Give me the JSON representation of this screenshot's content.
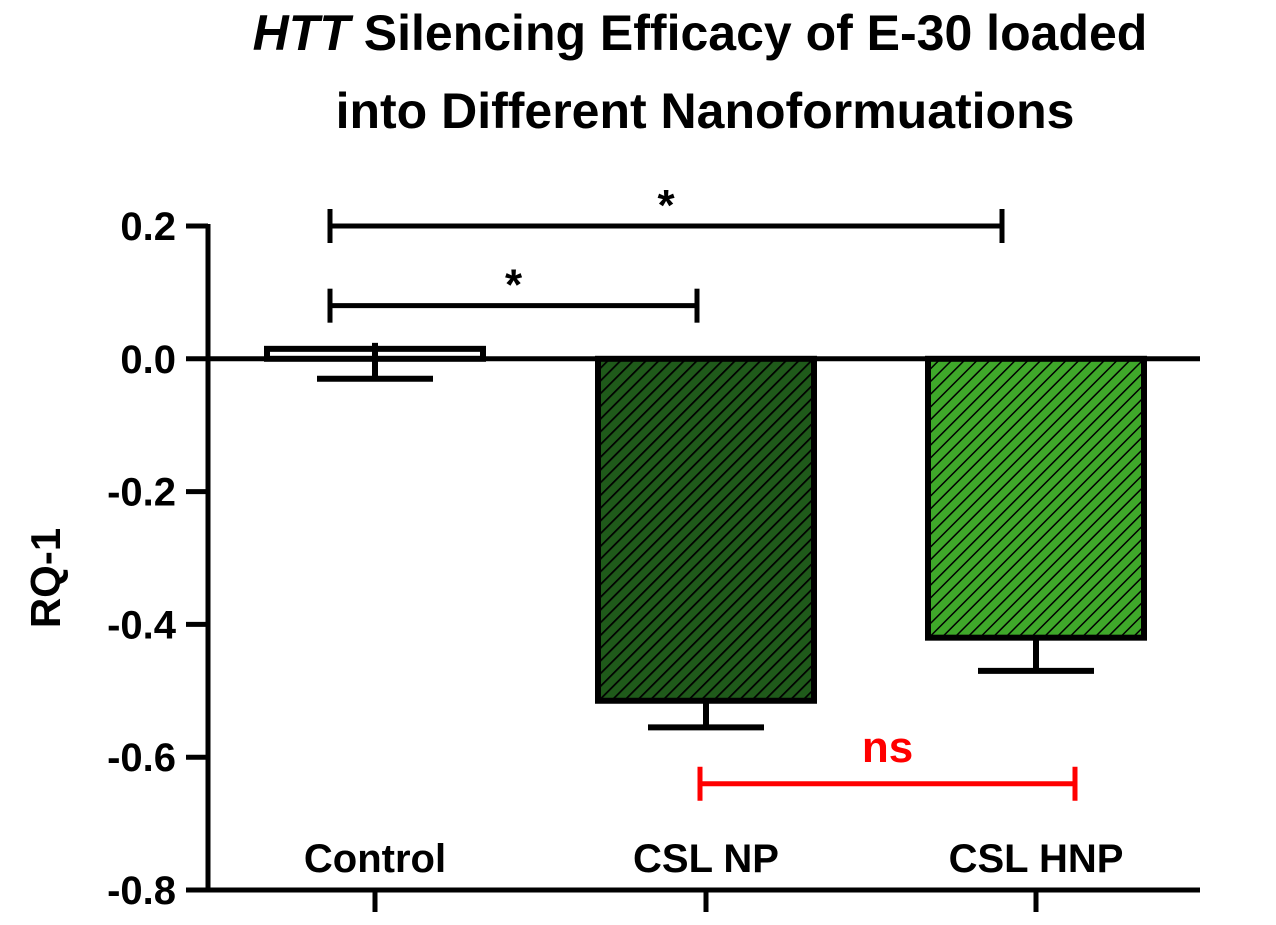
{
  "chart_data": {
    "type": "bar",
    "title_italic": "HTT",
    "title_rest": "Silencing Efficacy of E-30 loaded",
    "title_line2": "into Different Nanoformuations",
    "xlabel": "",
    "ylabel": "RQ-1",
    "ylim": [
      -0.8,
      0.2
    ],
    "yticks": [
      "0.2",
      "0.0",
      "-0.2",
      "-0.4",
      "-0.6",
      "-0.8"
    ],
    "ytick_values": [
      0.2,
      0.0,
      -0.2,
      -0.4,
      -0.6,
      -0.8
    ],
    "categories": [
      "Control",
      "CSL NP",
      "CSL HNP"
    ],
    "values": [
      0.015,
      -0.515,
      -0.42
    ],
    "errors": [
      0.03,
      0.04,
      0.05
    ],
    "bar_colors": [
      "#ffffff",
      "#1f5a1a",
      "#3fa82a"
    ],
    "hatch_colors": [
      "#ffffff",
      "#000000",
      "#000000"
    ],
    "significance": [
      {
        "from": 0,
        "to": 2,
        "label": "*",
        "y": 0.2,
        "color": "#000000"
      },
      {
        "from": 0,
        "to": 1,
        "label": "*",
        "y": 0.08,
        "color": "#000000"
      },
      {
        "from": 1,
        "to": 2,
        "label": "ns",
        "y": -0.64,
        "color": "#ff0000"
      }
    ],
    "grid": false
  }
}
